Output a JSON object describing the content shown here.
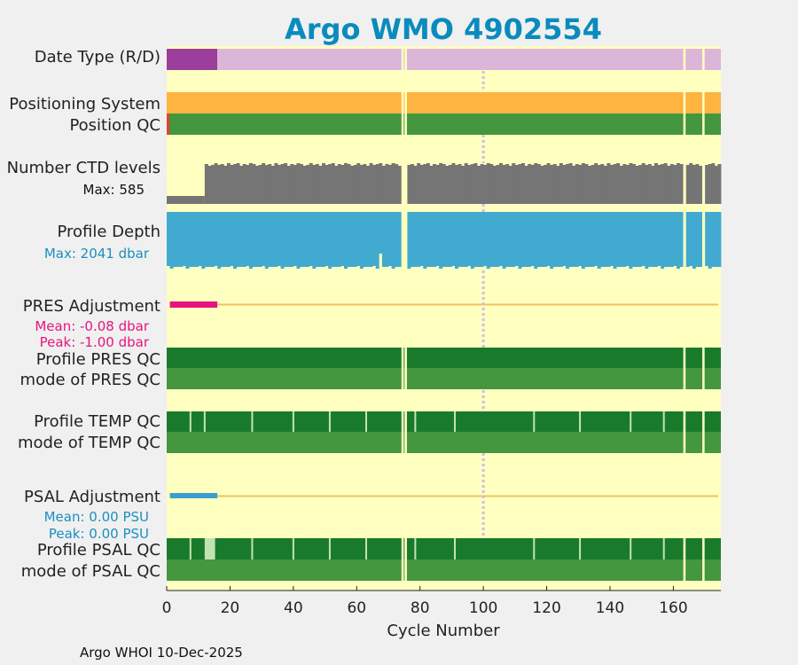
{
  "chart_data": {
    "type": "timeline",
    "title": "Argo WMO 4902554",
    "xlabel": "Cycle Number",
    "xlim": [
      0,
      175
    ],
    "xticks": [
      0,
      20,
      40,
      60,
      80,
      100,
      120,
      140,
      160
    ],
    "gap_cycles": [
      74,
      75,
      163,
      169
    ],
    "marker_cycle": 100,
    "rows": [
      {
        "key": "date_type",
        "label": "Date Type (R/D)"
      },
      {
        "key": "positioning_system",
        "label": "Positioning System"
      },
      {
        "key": "position_qc",
        "label": "Position QC"
      },
      {
        "key": "ctd_levels",
        "label": "Number CTD levels",
        "note": "Max: 585"
      },
      {
        "key": "profile_depth",
        "label": "Profile Depth",
        "note": "Max: 2041 dbar"
      },
      {
        "key": "pres_adjustment",
        "label": "PRES Adjustment",
        "mean": "Mean: -0.08 dbar",
        "peak": "Peak: -1.00 dbar"
      },
      {
        "key": "profile_pres_qc",
        "label": "Profile PRES QC"
      },
      {
        "key": "mode_pres_qc",
        "label": "mode of PRES QC"
      },
      {
        "key": "profile_temp_qc",
        "label": "Profile TEMP QC"
      },
      {
        "key": "mode_temp_qc",
        "label": "mode of TEMP QC"
      },
      {
        "key": "psal_adjustment",
        "label": "PSAL Adjustment",
        "mean": "Mean: 0.00 PSU",
        "peak": "Peak: 0.00 PSU"
      },
      {
        "key": "profile_psal_qc",
        "label": "Profile PSAL QC"
      },
      {
        "key": "mode_psal_qc",
        "label": "mode of PSAL QC"
      }
    ],
    "date_type_realtime_until_cycle": 16,
    "ctd_levels_low_until_cycle": 12,
    "ctd_levels_max": 585,
    "profile_depth_max_dbar": 2041,
    "pres_adjustment_nonzero_cycles": [
      1,
      16
    ],
    "psal_adjustment_nonzero_cycles": [
      1,
      16
    ],
    "temp_qc_breaks": [
      7.5,
      12,
      27,
      40,
      51.5,
      63,
      78.5,
      91,
      116,
      130.5,
      146.5,
      157
    ],
    "psal_qc_breaks": [
      7.5,
      15,
      27,
      40,
      51.5,
      63,
      78.5,
      91,
      116,
      130.5,
      146.5,
      157
    ],
    "psal_qc_light_cycles": [
      [
        12,
        15
      ]
    ]
  },
  "footer": "Argo WHOI 10-Dec-2025",
  "colors": {
    "panel": "#ffffc0",
    "date_realtime": "#9c3e9b",
    "date_delayed": "#dcb6d9",
    "positioning": "#fdb441",
    "qc_dark": "#1a7a2c",
    "qc_mid": "#44963f",
    "qc_light": "#c2e3b3",
    "ctd_grey": "#757575",
    "depth_blue": "#42aad0",
    "adj_line": "#f0c060",
    "pres_adj": "#e6147f",
    "psal_adj": "#3a9fcf",
    "marker": "#c8c0e6",
    "position_bad": "#e64030"
  }
}
